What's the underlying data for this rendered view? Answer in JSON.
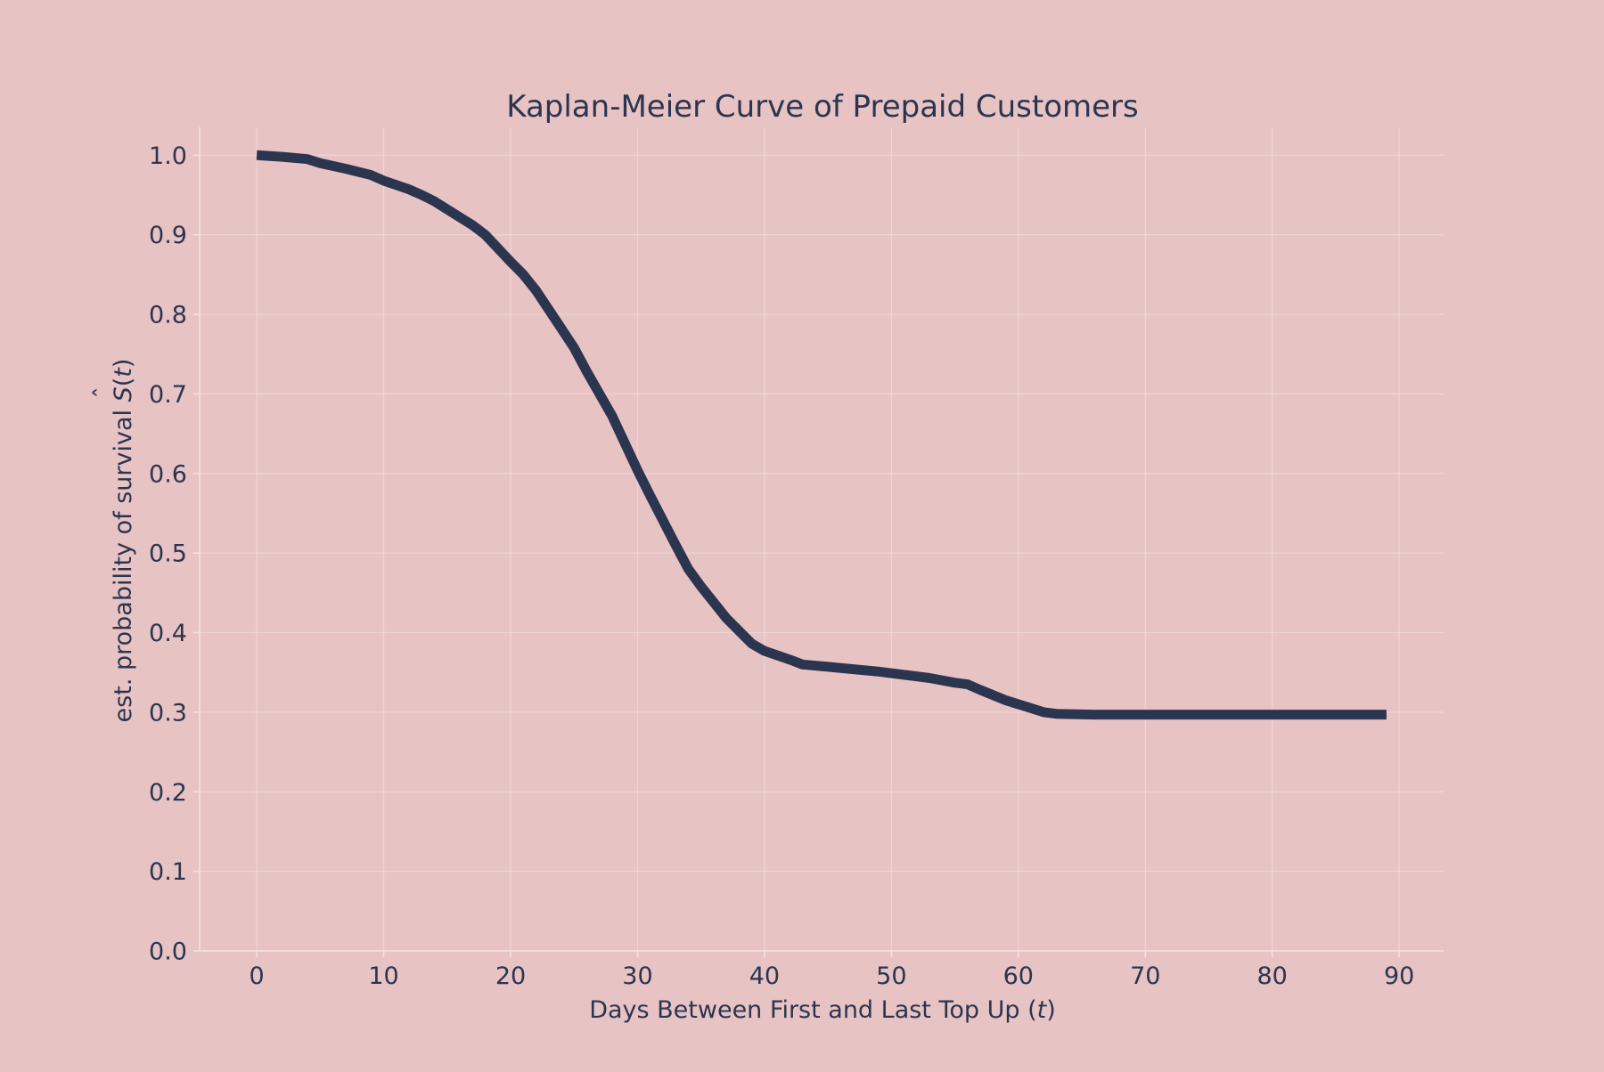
{
  "chart_data": {
    "type": "line",
    "title": "Kaplan-Meier Curve of Prepaid Customers",
    "xlabel": "Days Between First and Last Top Up",
    "xlabel_var": "t",
    "ylabel": "est. probability of survival",
    "ylabel_var": "S",
    "ylabel_arg": "t",
    "xlim": [
      -4.5,
      93.5
    ],
    "ylim": [
      0.0,
      1.035
    ],
    "xticks": [
      0,
      10,
      20,
      30,
      40,
      50,
      60,
      70,
      80,
      90
    ],
    "yticks": [
      0.0,
      0.1,
      0.2,
      0.3,
      0.4,
      0.5,
      0.6,
      0.7,
      0.8,
      0.9,
      1.0
    ],
    "ytick_labels": [
      "0.0",
      "0.1",
      "0.2",
      "0.3",
      "0.4",
      "0.5",
      "0.6",
      "0.7",
      "0.8",
      "0.9",
      "1.0"
    ],
    "grid": true,
    "legend": "none",
    "colors": {
      "background": "#e8c3c4",
      "line": "#2b3550",
      "text": "#2b3550",
      "grid": "#f1dcdc"
    },
    "series": [
      {
        "x": [
          0,
          2,
          4,
          5,
          7,
          9,
          10,
          12,
          13,
          14,
          16,
          17,
          18,
          20,
          21,
          22,
          24,
          25,
          26,
          28,
          30,
          31,
          33,
          34,
          35,
          37,
          39,
          40,
          42,
          43,
          45,
          47,
          49,
          51,
          53,
          55,
          56,
          57,
          59,
          61,
          62,
          63,
          66,
          70,
          75,
          80,
          85,
          89
        ],
        "y": [
          1.0,
          0.998,
          0.995,
          0.99,
          0.983,
          0.975,
          0.968,
          0.957,
          0.95,
          0.942,
          0.922,
          0.912,
          0.9,
          0.866,
          0.85,
          0.83,
          0.782,
          0.758,
          0.728,
          0.672,
          0.604,
          0.572,
          0.51,
          0.48,
          0.458,
          0.418,
          0.386,
          0.377,
          0.366,
          0.36,
          0.357,
          0.354,
          0.351,
          0.347,
          0.343,
          0.337,
          0.335,
          0.328,
          0.315,
          0.305,
          0.3,
          0.298,
          0.297,
          0.297,
          0.297,
          0.297,
          0.297,
          0.297
        ]
      }
    ]
  }
}
